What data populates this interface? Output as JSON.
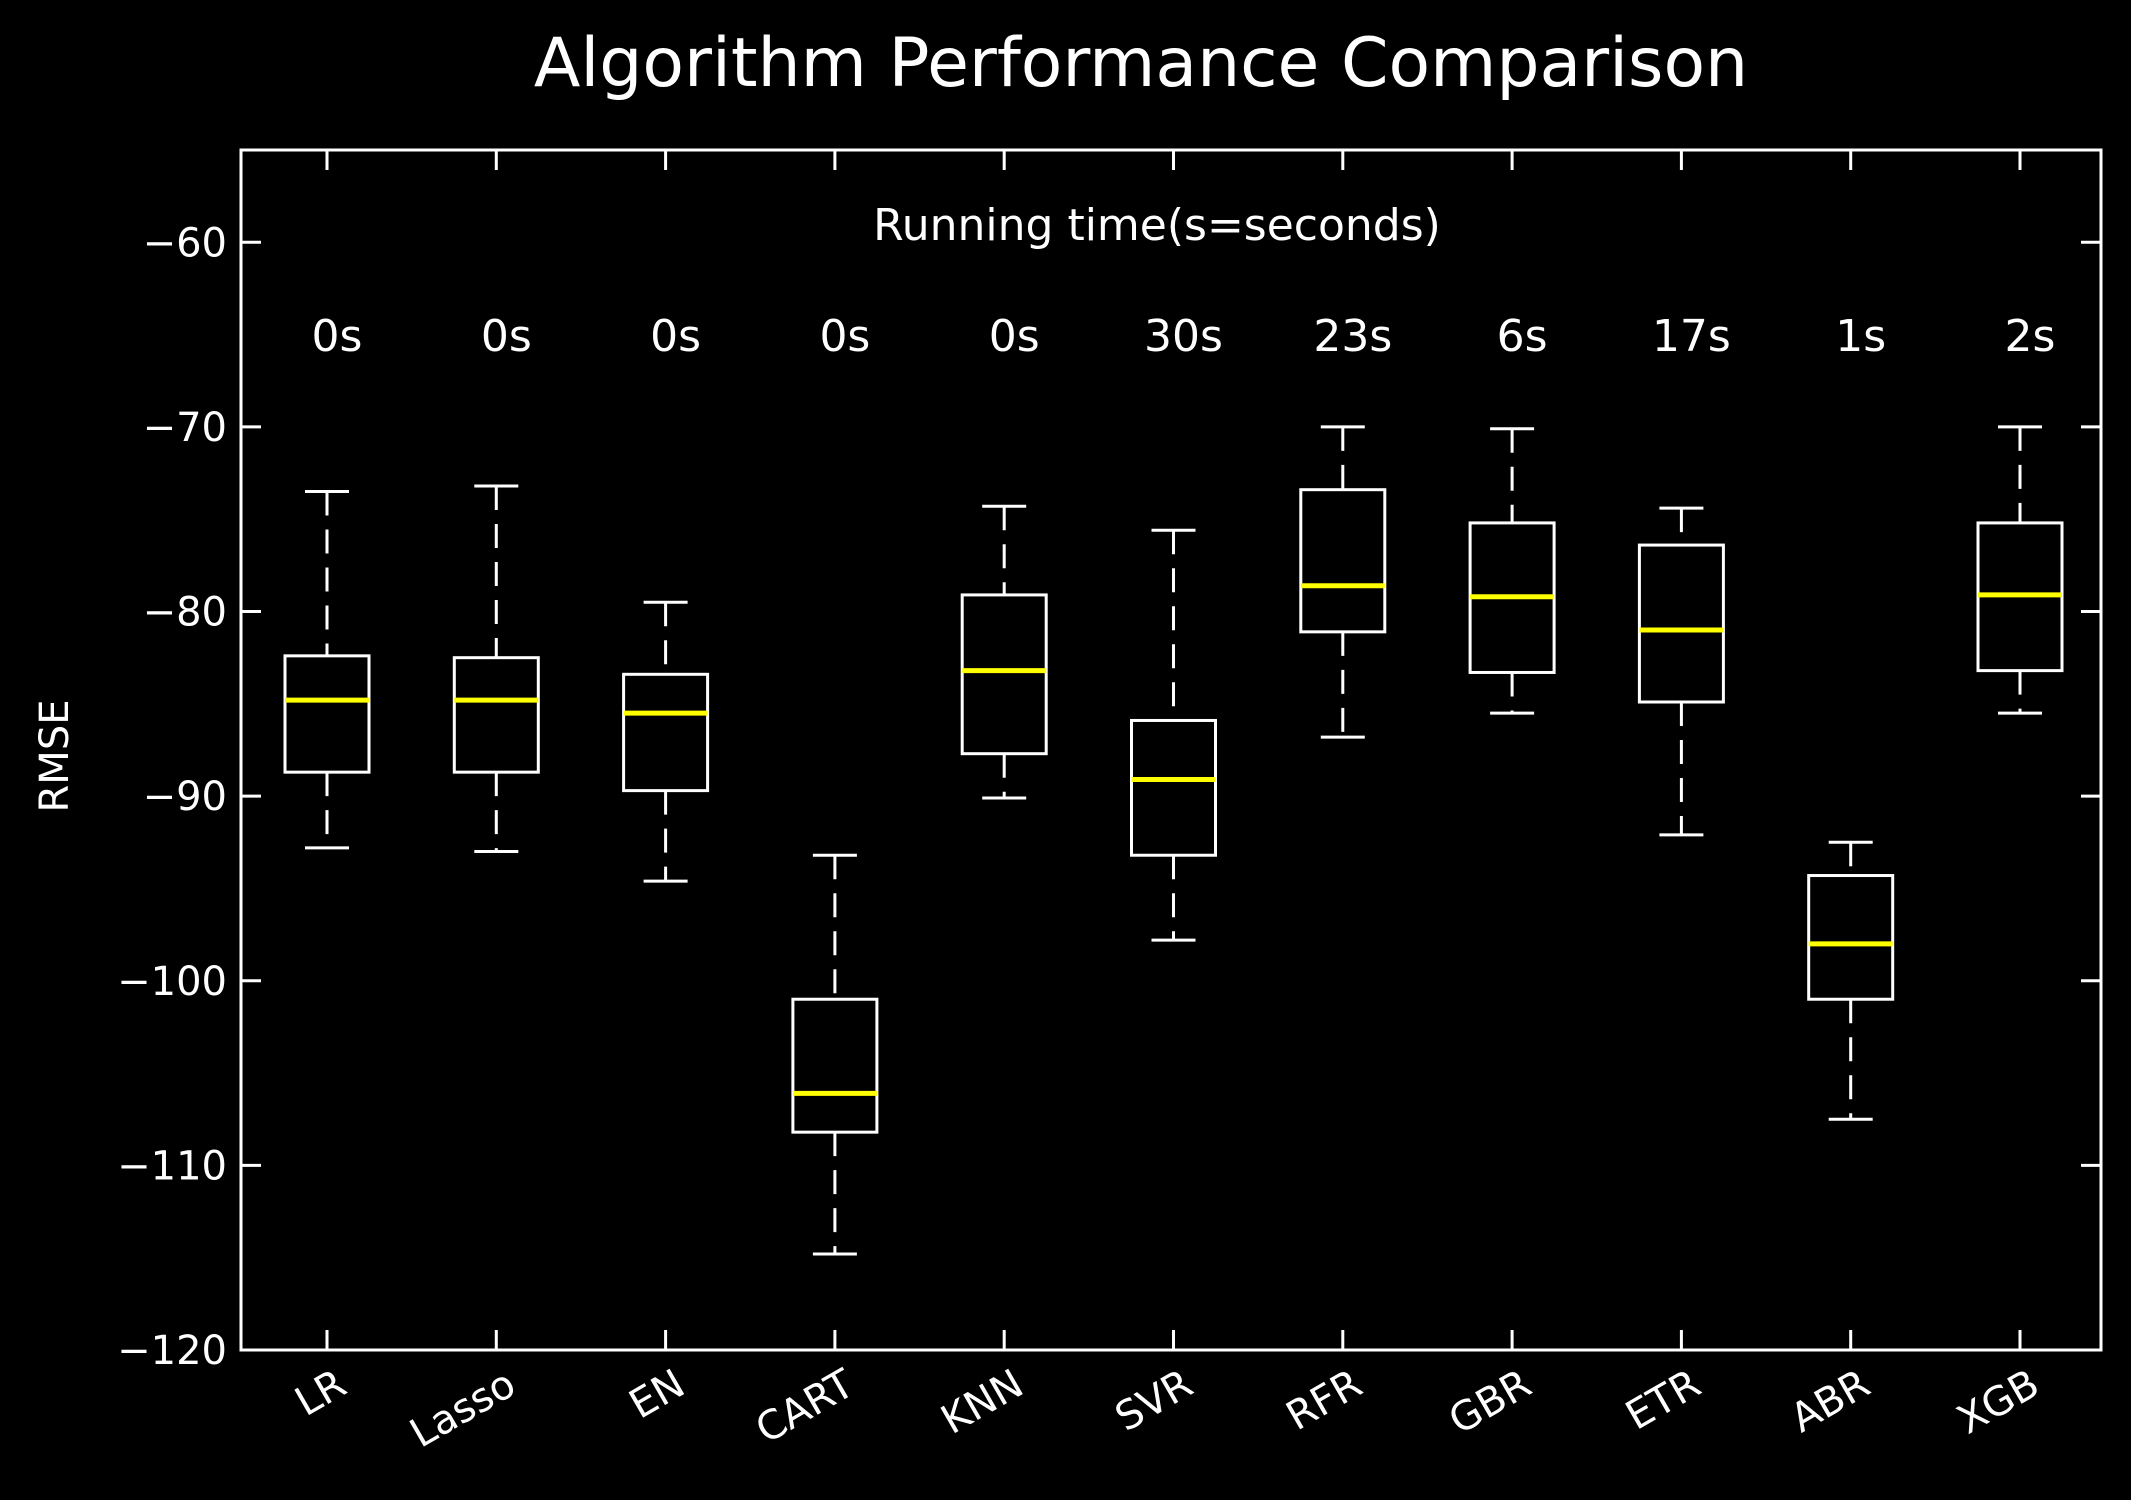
{
  "chart_data": {
    "type": "box",
    "title": "Algorithm Performance Comparison",
    "xlabel": "",
    "ylabel": "RMSE",
    "annotation_title": "Running time(s=seconds)",
    "ylim": [
      -120,
      -55
    ],
    "yticks": [
      -60,
      -70,
      -80,
      -90,
      -100,
      -110,
      -120
    ],
    "ytick_labels": [
      "−60",
      "−70",
      "−80",
      "−90",
      "−100",
      "−110",
      "−120"
    ],
    "grid": false,
    "colors": {
      "background": "#000000",
      "box": "#ffffff",
      "median": "#ffff00",
      "text": "#ffffff"
    },
    "categories": [
      "LR",
      "Lasso",
      "EN",
      "CART",
      "KNN",
      "SVR",
      "RFR",
      "GBR",
      "ETR",
      "ABR",
      "XGB"
    ],
    "running_time": [
      "0s",
      "0s",
      "0s",
      "0s",
      "0s",
      "30s",
      "23s",
      "6s",
      "17s",
      "1s",
      "2s"
    ],
    "boxes": [
      {
        "whisker_high": -73.5,
        "q3": -82.4,
        "median": -84.8,
        "q1": -88.7,
        "whisker_low": -92.8
      },
      {
        "whisker_high": -73.2,
        "q3": -82.5,
        "median": -84.8,
        "q1": -88.7,
        "whisker_low": -93.0
      },
      {
        "whisker_high": -79.5,
        "q3": -83.4,
        "median": -85.5,
        "q1": -89.7,
        "whisker_low": -94.6
      },
      {
        "whisker_high": -93.2,
        "q3": -101.0,
        "median": -106.1,
        "q1": -108.2,
        "whisker_low": -114.8
      },
      {
        "whisker_high": -74.3,
        "q3": -79.1,
        "median": -83.2,
        "q1": -87.7,
        "whisker_low": -90.1
      },
      {
        "whisker_high": -75.6,
        "q3": -85.9,
        "median": -89.1,
        "q1": -93.2,
        "whisker_low": -97.8
      },
      {
        "whisker_high": -70.0,
        "q3": -73.4,
        "median": -78.6,
        "q1": -81.1,
        "whisker_low": -86.8
      },
      {
        "whisker_high": -70.1,
        "q3": -75.2,
        "median": -79.2,
        "q1": -83.3,
        "whisker_low": -85.5
      },
      {
        "whisker_high": -74.4,
        "q3": -76.4,
        "median": -81.0,
        "q1": -84.9,
        "whisker_low": -92.1
      },
      {
        "whisker_high": -92.5,
        "q3": -94.3,
        "median": -98.0,
        "q1": -101.0,
        "whisker_low": -107.5
      },
      {
        "whisker_high": -70.0,
        "q3": -75.2,
        "median": -79.1,
        "q1": -83.2,
        "whisker_low": -85.5
      }
    ]
  }
}
